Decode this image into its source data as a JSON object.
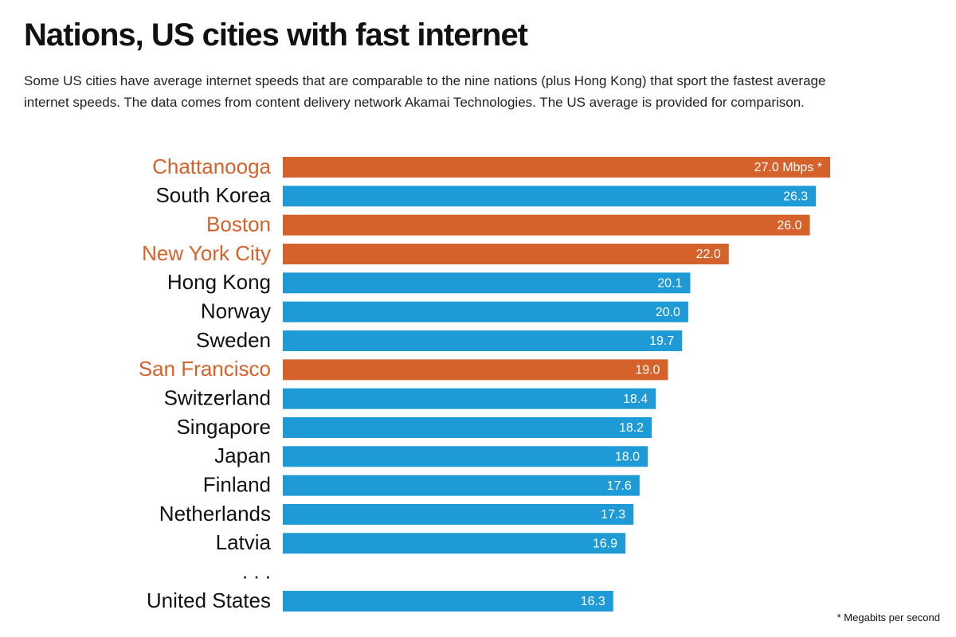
{
  "chart_data": {
    "type": "bar",
    "orientation": "horizontal",
    "title": "Nations, US cities with fast internet",
    "subtitle": "Some US cities have average internet speeds that are comparable to the nine nations (plus Hong Kong) that sport the fastest average internet speeds. The data comes from content delivery network Akamai Technologies. The US average is provided for comparison.",
    "footnote": "* Megabits per second",
    "categories": [
      "Chattanooga",
      "South Korea",
      "Boston",
      "New York City",
      "Hong Kong",
      "Norway",
      "Sweden",
      "San Francisco",
      "Switzerland",
      "Singapore",
      "Japan",
      "Finland",
      "Netherlands",
      "Latvia",
      ". . .",
      "United States"
    ],
    "values": [
      27.0,
      26.3,
      26.0,
      22.0,
      20.1,
      20.0,
      19.7,
      19.0,
      18.4,
      18.2,
      18.0,
      17.6,
      17.3,
      16.9,
      null,
      16.3
    ],
    "value_labels": [
      "27.0 Mbps *",
      "26.3",
      "26.0",
      "22.0",
      "20.1",
      "20.0",
      "19.7",
      "19.0",
      "18.4",
      "18.2",
      "18.0",
      "17.6",
      "17.3",
      "16.9",
      null,
      "16.3"
    ],
    "colors": [
      "#d4622a",
      "#1e9ad6",
      "#d4622a",
      "#d4622a",
      "#1e9ad6",
      "#1e9ad6",
      "#1e9ad6",
      "#d4622a",
      "#1e9ad6",
      "#1e9ad6",
      "#1e9ad6",
      "#1e9ad6",
      "#1e9ad6",
      "#1e9ad6",
      null,
      "#1e9ad6"
    ],
    "label_colors": [
      "#d4622a",
      "#111111",
      "#d4622a",
      "#d4622a",
      "#111111",
      "#111111",
      "#111111",
      "#d4622a",
      "#111111",
      "#111111",
      "#111111",
      "#111111",
      "#111111",
      "#111111",
      "#111111",
      "#111111"
    ]
  }
}
